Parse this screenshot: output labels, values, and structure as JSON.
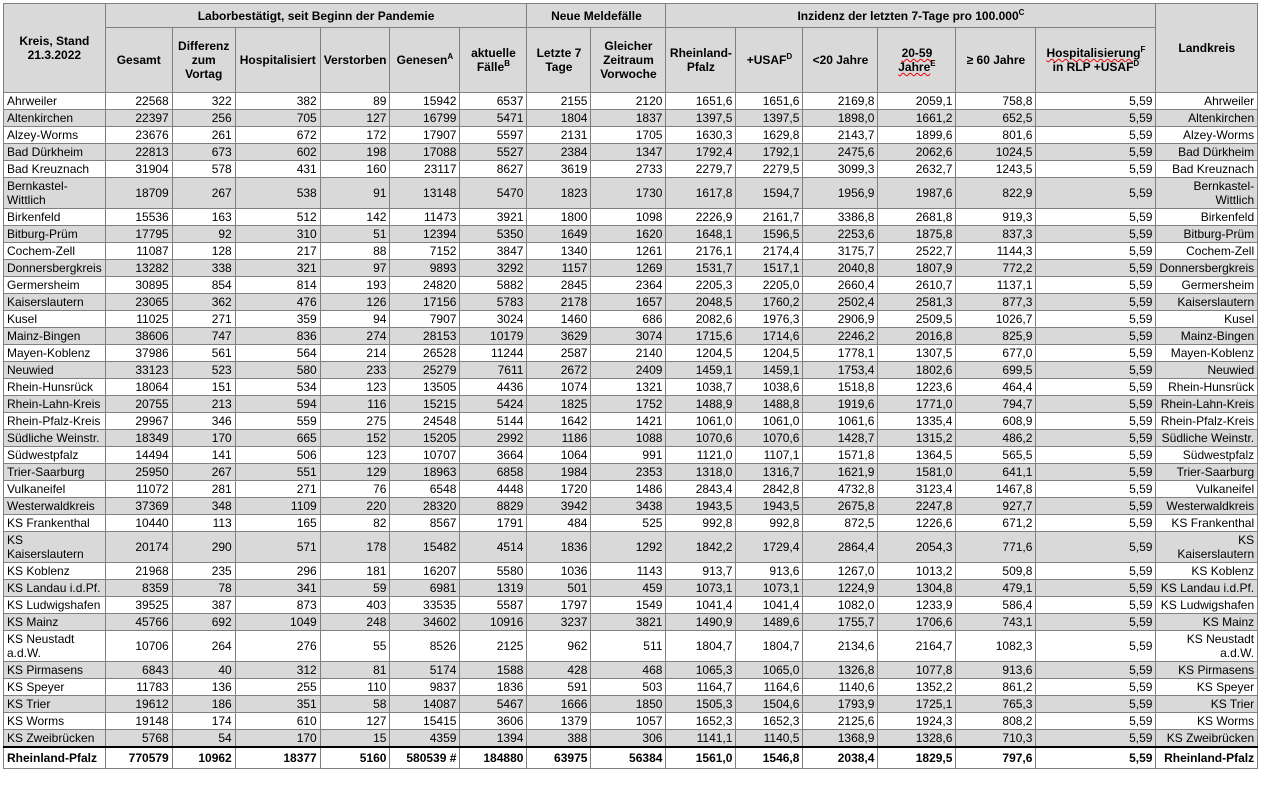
{
  "header": {
    "corner": "Kreis, Stand 21.3.2022",
    "landkreis": "Landkreis",
    "groups": [
      {
        "text": "Laborbestätigt, seit Beginn der Pandemie"
      },
      {
        "text": "Neue Meldefälle"
      },
      {
        "text": "Inzidenz der letzten 7-Tage pro 100.000",
        "sup": "C"
      }
    ],
    "columns": [
      {
        "text": "Gesamt"
      },
      {
        "text": "Differenz zum Vortag"
      },
      {
        "text": "Hospitalisiert"
      },
      {
        "text": "Verstorben"
      },
      {
        "text": "Genesen",
        "sup": "A"
      },
      {
        "text": "aktuelle Fälle",
        "sup": "B"
      },
      {
        "text": "Letzte 7 Tage"
      },
      {
        "text": "Gleicher Zeitraum Vorwoche"
      },
      {
        "text": "Rheinland-Pfalz"
      },
      {
        "text": "+USAF",
        "sup": "D"
      },
      {
        "text": "<20 Jahre"
      },
      {
        "text": "20-59 Jahre",
        "sup": "E"
      },
      {
        "text": "≥ 60 Jahre"
      },
      {
        "text": "Hospitalisierung",
        "sup": "F",
        "text2": "in RLP +USAF",
        "sup2": "D"
      }
    ]
  },
  "rows": [
    [
      "Ahrweiler",
      "22568",
      "322",
      "382",
      "89",
      "15942",
      "6537",
      "2155",
      "2120",
      "1651,6",
      "1651,6",
      "2169,8",
      "2059,1",
      "758,8",
      "5,59",
      "Ahrweiler"
    ],
    [
      "Altenkirchen",
      "22397",
      "256",
      "705",
      "127",
      "16799",
      "5471",
      "1804",
      "1837",
      "1397,5",
      "1397,5",
      "1898,0",
      "1661,2",
      "652,5",
      "5,59",
      "Altenkirchen"
    ],
    [
      "Alzey-Worms",
      "23676",
      "261",
      "672",
      "172",
      "17907",
      "5597",
      "2131",
      "1705",
      "1630,3",
      "1629,8",
      "2143,7",
      "1899,6",
      "801,6",
      "5,59",
      "Alzey-Worms"
    ],
    [
      "Bad Dürkheim",
      "22813",
      "673",
      "602",
      "198",
      "17088",
      "5527",
      "2384",
      "1347",
      "1792,4",
      "1792,1",
      "2475,6",
      "2062,6",
      "1024,5",
      "5,59",
      "Bad Dürkheim"
    ],
    [
      "Bad Kreuznach",
      "31904",
      "578",
      "431",
      "160",
      "23117",
      "8627",
      "3619",
      "2733",
      "2279,7",
      "2279,5",
      "3099,3",
      "2632,7",
      "1243,5",
      "5,59",
      "Bad Kreuznach"
    ],
    [
      "Bernkastel-Wittlich",
      "18709",
      "267",
      "538",
      "91",
      "13148",
      "5470",
      "1823",
      "1730",
      "1617,8",
      "1594,7",
      "1956,9",
      "1987,6",
      "822,9",
      "5,59",
      "Bernkastel-Wittlich"
    ],
    [
      "Birkenfeld",
      "15536",
      "163",
      "512",
      "142",
      "11473",
      "3921",
      "1800",
      "1098",
      "2226,9",
      "2161,7",
      "3386,8",
      "2681,8",
      "919,3",
      "5,59",
      "Birkenfeld"
    ],
    [
      "Bitburg-Prüm",
      "17795",
      "92",
      "310",
      "51",
      "12394",
      "5350",
      "1649",
      "1620",
      "1648,1",
      "1596,5",
      "2253,6",
      "1875,8",
      "837,3",
      "5,59",
      "Bitburg-Prüm"
    ],
    [
      "Cochem-Zell",
      "11087",
      "128",
      "217",
      "88",
      "7152",
      "3847",
      "1340",
      "1261",
      "2176,1",
      "2174,4",
      "3175,7",
      "2522,7",
      "1144,3",
      "5,59",
      "Cochem-Zell"
    ],
    [
      "Donnersbergkreis",
      "13282",
      "338",
      "321",
      "97",
      "9893",
      "3292",
      "1157",
      "1269",
      "1531,7",
      "1517,1",
      "2040,8",
      "1807,9",
      "772,2",
      "5,59",
      "Donnersbergkreis"
    ],
    [
      "Germersheim",
      "30895",
      "854",
      "814",
      "193",
      "24820",
      "5882",
      "2845",
      "2364",
      "2205,3",
      "2205,0",
      "2660,4",
      "2610,7",
      "1137,1",
      "5,59",
      "Germersheim"
    ],
    [
      "Kaiserslautern",
      "23065",
      "362",
      "476",
      "126",
      "17156",
      "5783",
      "2178",
      "1657",
      "2048,5",
      "1760,2",
      "2502,4",
      "2581,3",
      "877,3",
      "5,59",
      "Kaiserslautern"
    ],
    [
      "Kusel",
      "11025",
      "271",
      "359",
      "94",
      "7907",
      "3024",
      "1460",
      "686",
      "2082,6",
      "1976,3",
      "2906,9",
      "2509,5",
      "1026,7",
      "5,59",
      "Kusel"
    ],
    [
      "Mainz-Bingen",
      "38606",
      "747",
      "836",
      "274",
      "28153",
      "10179",
      "3629",
      "3074",
      "1715,6",
      "1714,6",
      "2246,2",
      "2016,8",
      "825,9",
      "5,59",
      "Mainz-Bingen"
    ],
    [
      "Mayen-Koblenz",
      "37986",
      "561",
      "564",
      "214",
      "26528",
      "11244",
      "2587",
      "2140",
      "1204,5",
      "1204,5",
      "1778,1",
      "1307,5",
      "677,0",
      "5,59",
      "Mayen-Koblenz"
    ],
    [
      "Neuwied",
      "33123",
      "523",
      "580",
      "233",
      "25279",
      "7611",
      "2672",
      "2409",
      "1459,1",
      "1459,1",
      "1753,4",
      "1802,6",
      "699,5",
      "5,59",
      "Neuwied"
    ],
    [
      "Rhein-Hunsrück",
      "18064",
      "151",
      "534",
      "123",
      "13505",
      "4436",
      "1074",
      "1321",
      "1038,7",
      "1038,6",
      "1518,8",
      "1223,6",
      "464,4",
      "5,59",
      "Rhein-Hunsrück"
    ],
    [
      "Rhein-Lahn-Kreis",
      "20755",
      "213",
      "594",
      "116",
      "15215",
      "5424",
      "1825",
      "1752",
      "1488,9",
      "1488,8",
      "1919,6",
      "1771,0",
      "794,7",
      "5,59",
      "Rhein-Lahn-Kreis"
    ],
    [
      "Rhein-Pfalz-Kreis",
      "29967",
      "346",
      "559",
      "275",
      "24548",
      "5144",
      "1642",
      "1421",
      "1061,0",
      "1061,0",
      "1061,6",
      "1335,4",
      "608,9",
      "5,59",
      "Rhein-Pfalz-Kreis"
    ],
    [
      "Südliche Weinstr.",
      "18349",
      "170",
      "665",
      "152",
      "15205",
      "2992",
      "1186",
      "1088",
      "1070,6",
      "1070,6",
      "1428,7",
      "1315,2",
      "486,2",
      "5,59",
      "Südliche Weinstr."
    ],
    [
      "Südwestpfalz",
      "14494",
      "141",
      "506",
      "123",
      "10707",
      "3664",
      "1064",
      "991",
      "1121,0",
      "1107,1",
      "1571,8",
      "1364,5",
      "565,5",
      "5,59",
      "Südwestpfalz"
    ],
    [
      "Trier-Saarburg",
      "25950",
      "267",
      "551",
      "129",
      "18963",
      "6858",
      "1984",
      "2353",
      "1318,0",
      "1316,7",
      "1621,9",
      "1581,0",
      "641,1",
      "5,59",
      "Trier-Saarburg"
    ],
    [
      "Vulkaneifel",
      "11072",
      "281",
      "271",
      "76",
      "6548",
      "4448",
      "1720",
      "1486",
      "2843,4",
      "2842,8",
      "4732,8",
      "3123,4",
      "1467,8",
      "5,59",
      "Vulkaneifel"
    ],
    [
      "Westerwaldkreis",
      "37369",
      "348",
      "1109",
      "220",
      "28320",
      "8829",
      "3942",
      "3438",
      "1943,5",
      "1943,5",
      "2675,8",
      "2247,8",
      "927,7",
      "5,59",
      "Westerwaldkreis"
    ],
    [
      "KS Frankenthal",
      "10440",
      "113",
      "165",
      "82",
      "8567",
      "1791",
      "484",
      "525",
      "992,8",
      "992,8",
      "872,5",
      "1226,6",
      "671,2",
      "5,59",
      "KS Frankenthal"
    ],
    [
      "KS Kaiserslautern",
      "20174",
      "290",
      "571",
      "178",
      "15482",
      "4514",
      "1836",
      "1292",
      "1842,2",
      "1729,4",
      "2864,4",
      "2054,3",
      "771,6",
      "5,59",
      "KS Kaiserslautern"
    ],
    [
      "KS Koblenz",
      "21968",
      "235",
      "296",
      "181",
      "16207",
      "5580",
      "1036",
      "1143",
      "913,7",
      "913,6",
      "1267,0",
      "1013,2",
      "509,8",
      "5,59",
      "KS Koblenz"
    ],
    [
      "KS Landau i.d.Pf.",
      "8359",
      "78",
      "341",
      "59",
      "6981",
      "1319",
      "501",
      "459",
      "1073,1",
      "1073,1",
      "1224,9",
      "1304,8",
      "479,1",
      "5,59",
      "KS Landau i.d.Pf."
    ],
    [
      "KS Ludwigshafen",
      "39525",
      "387",
      "873",
      "403",
      "33535",
      "5587",
      "1797",
      "1549",
      "1041,4",
      "1041,4",
      "1082,0",
      "1233,9",
      "586,4",
      "5,59",
      "KS Ludwigshafen"
    ],
    [
      "KS Mainz",
      "45766",
      "692",
      "1049",
      "248",
      "34602",
      "10916",
      "3237",
      "3821",
      "1490,9",
      "1489,6",
      "1755,7",
      "1706,6",
      "743,1",
      "5,59",
      "KS Mainz"
    ],
    [
      "KS Neustadt a.d.W.",
      "10706",
      "264",
      "276",
      "55",
      "8526",
      "2125",
      "962",
      "511",
      "1804,7",
      "1804,7",
      "2134,6",
      "2164,7",
      "1082,3",
      "5,59",
      "KS Neustadt a.d.W."
    ],
    [
      "KS Pirmasens",
      "6843",
      "40",
      "312",
      "81",
      "5174",
      "1588",
      "428",
      "468",
      "1065,3",
      "1065,0",
      "1326,8",
      "1077,8",
      "913,6",
      "5,59",
      "KS Pirmasens"
    ],
    [
      "KS Speyer",
      "11783",
      "136",
      "255",
      "110",
      "9837",
      "1836",
      "591",
      "503",
      "1164,7",
      "1164,6",
      "1140,6",
      "1352,2",
      "861,2",
      "5,59",
      "KS Speyer"
    ],
    [
      "KS Trier",
      "19612",
      "186",
      "351",
      "58",
      "14087",
      "5467",
      "1666",
      "1850",
      "1505,3",
      "1504,6",
      "1793,9",
      "1725,1",
      "765,3",
      "5,59",
      "KS Trier"
    ],
    [
      "KS Worms",
      "19148",
      "174",
      "610",
      "127",
      "15415",
      "3606",
      "1379",
      "1057",
      "1652,3",
      "1652,3",
      "2125,6",
      "1924,3",
      "808,2",
      "5,59",
      "KS Worms"
    ],
    [
      "KS Zweibrücken",
      "5768",
      "54",
      "170",
      "15",
      "4359",
      "1394",
      "388",
      "306",
      "1141,1",
      "1140,5",
      "1368,9",
      "1328,6",
      "710,3",
      "5,59",
      "KS Zweibrücken"
    ]
  ],
  "total": [
    "Rheinland-Pfalz",
    "770579",
    "10962",
    "18377",
    "5160",
    "580539 #",
    "184880",
    "63975",
    "56384",
    "1561,0",
    "1546,8",
    "2038,4",
    "1829,5",
    "797,6",
    "5,59",
    "Rheinland-Pfalz"
  ]
}
